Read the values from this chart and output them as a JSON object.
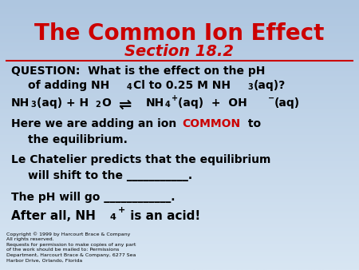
{
  "title": "The Common Ion Effect",
  "subtitle": "Section 18.2",
  "title_color": "#CC0000",
  "subtitle_color": "#CC0000",
  "bg_color_top": "#aec6e0",
  "bg_color_bottom": "#d8e6f3",
  "line_color": "#CC0000",
  "text_color": "#000000",
  "common_color": "#CC0000",
  "copyright": "Copyright © 1999 by Harcourt Brace & Company\nAll rights reserved.\nRequests for permission to make copies of any part\nof the work should be mailed to: Permissions\nDepartment, Harcourt Brace & Company, 6277 Sea\nHarbor Drive, Orlando, Florida"
}
